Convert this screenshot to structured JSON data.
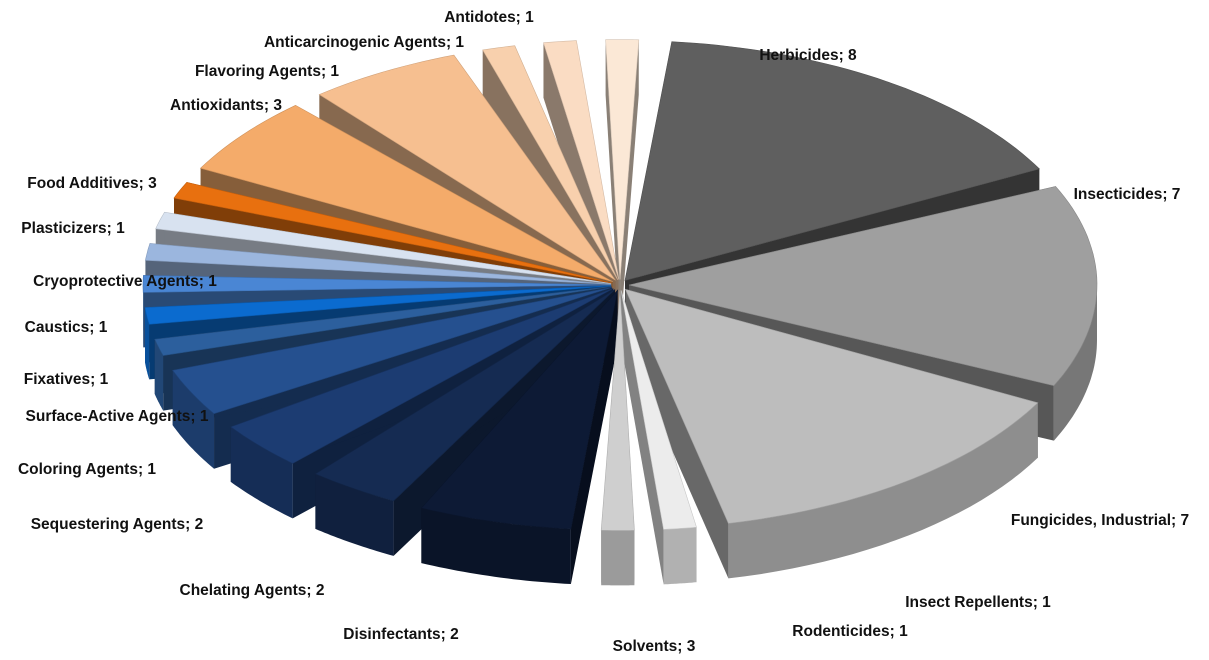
{
  "chart_data": {
    "type": "pie",
    "title": "",
    "style": "3d-exploded",
    "label_format": "{name}; {value}",
    "categories": [
      "Herbicides",
      "Insecticides",
      "Fungicides, Industrial",
      "Insect Repellents",
      "Rodenticides",
      "Solvents",
      "Disinfectants",
      "Chelating Agents",
      "Sequestering Agents",
      "Coloring Agents",
      "Surface-Active Agents",
      "Fixatives",
      "Caustics",
      "Cryoprotective Agents",
      "Plasticizers",
      "Food Additives",
      "Antioxidants",
      "Flavoring Agents",
      "Anticarcinogenic Agents",
      "Antidotes"
    ],
    "values": [
      8,
      7,
      7,
      1,
      1,
      3,
      2,
      2,
      2,
      1,
      1,
      1,
      1,
      1,
      1,
      3,
      3,
      1,
      1,
      1
    ],
    "colors": [
      "#5f5f5f",
      "#9f9f9f",
      "#bdbdbd",
      "#ececec",
      "#cfcfcf",
      "#0d1a35",
      "#152b52",
      "#1c3c72",
      "#25508f",
      "#2c5f9d",
      "#0b6bcf",
      "#4a86d4",
      "#9bb6de",
      "#d8e2f0",
      "#e8700f",
      "#f4ab6a",
      "#f6bf90",
      "#f8d0ad",
      "#fadcc3",
      "#fbe8d6"
    ],
    "labels": [
      "Herbicides; 8",
      "Insecticides; 7",
      "Fungicides, Industrial; 7",
      "Insect Repellents; 1",
      "Rodenticides; 1",
      "Solvents; 3",
      "Disinfectants; 2",
      "Chelating Agents; 2",
      "Sequestering Agents; 2",
      "Coloring Agents; 1",
      "Surface-Active Agents; 1",
      "Fixatives; 1",
      "Caustics; 1",
      "Cryoprotective Agents; 1",
      "Plasticizers; 1",
      "Food Additives; 3",
      "Antioxidants; 3",
      "Flavoring Agents; 1",
      "Anticarcinogenic Agents; 1",
      "Antidotes; 1"
    ],
    "legend": "none"
  }
}
